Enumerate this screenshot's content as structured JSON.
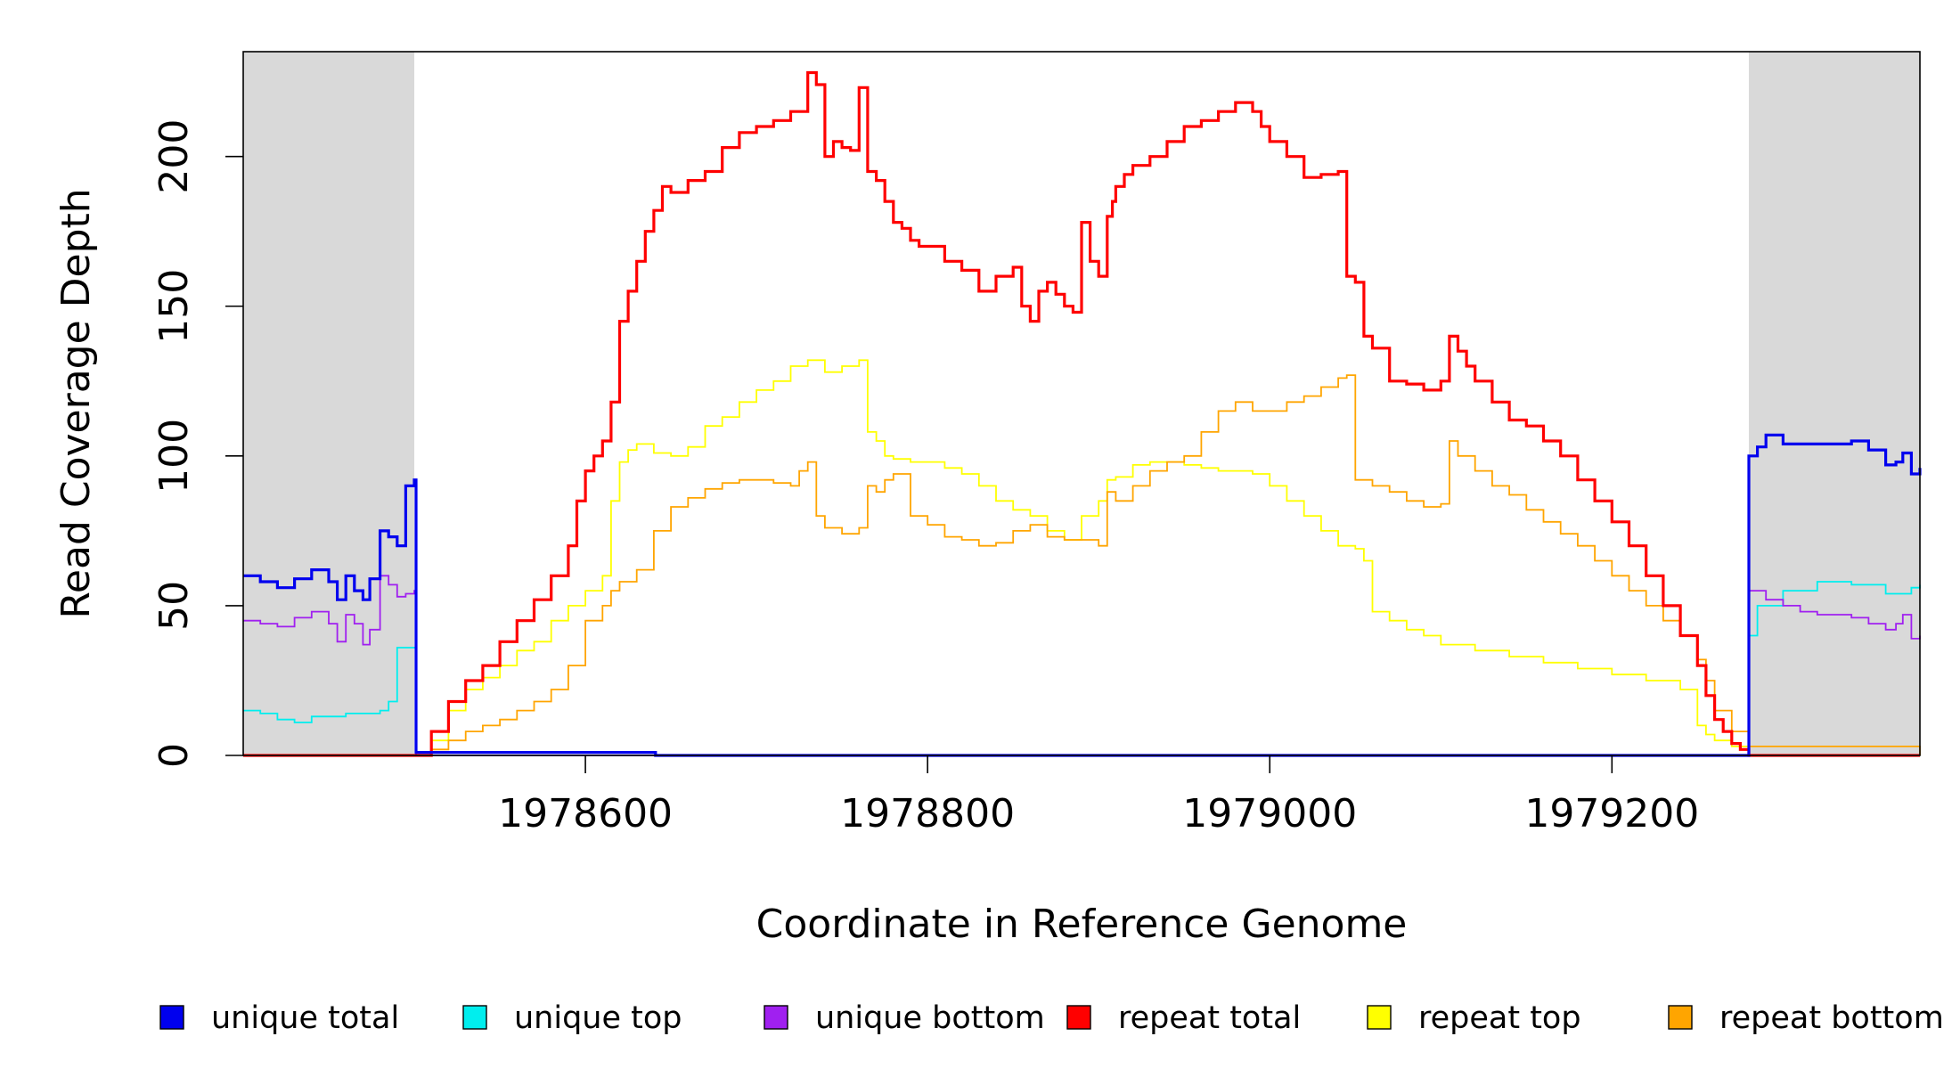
{
  "chart_data": {
    "type": "line",
    "xlabel": "Coordinate in Reference Genome",
    "ylabel": "Read Coverage Depth",
    "xlim": [
      1978400,
      1979380
    ],
    "ylim": [
      0,
      235
    ],
    "x_ticks": [
      1978600,
      1978800,
      1979000,
      1979200
    ],
    "y_ticks": [
      0,
      50,
      100,
      150,
      200
    ],
    "x_tick_labels": [
      "1978600",
      "1978800",
      "1979000",
      "1979200"
    ],
    "y_tick_labels": [
      "0",
      "50",
      "100",
      "150",
      "200"
    ],
    "shaded_regions": [
      [
        1978400,
        1978500
      ],
      [
        1979280,
        1979380
      ]
    ],
    "grid": false,
    "legend_position": "bottom",
    "colors": {
      "unique total": "#0000ee",
      "unique top": "#00eeee",
      "unique bottom": "#a020f0",
      "repeat total": "#ff0000",
      "repeat top": "#ffff00",
      "repeat bottom": "#ffa500",
      "shade": "#d9d9d9"
    },
    "series": [
      {
        "name": "unique total",
        "color": "#0000ee",
        "x": [
          1978400,
          1978410,
          1978420,
          1978430,
          1978440,
          1978450,
          1978455,
          1978460,
          1978465,
          1978470,
          1978474,
          1978480,
          1978485,
          1978490,
          1978495,
          1978500,
          1978501,
          1978640,
          1978641,
          1979279,
          1979280,
          1979285,
          1979290,
          1979300,
          1979320,
          1979340,
          1979350,
          1979360,
          1979366,
          1979370,
          1979375,
          1979380
        ],
        "values": [
          60,
          58,
          56,
          59,
          62,
          58,
          52,
          60,
          55,
          52,
          59,
          75,
          73,
          70,
          90,
          92,
          1,
          1,
          0,
          0,
          100,
          103,
          107,
          104,
          104,
          105,
          102,
          97,
          98,
          101,
          94,
          96
        ]
      },
      {
        "name": "unique top",
        "color": "#00eeee",
        "x": [
          1978400,
          1978410,
          1978420,
          1978430,
          1978440,
          1978450,
          1978460,
          1978470,
          1978480,
          1978485,
          1978490,
          1978500,
          1978501,
          1979279,
          1979280,
          1979285,
          1979300,
          1979320,
          1979340,
          1979360,
          1979375,
          1979380
        ],
        "values": [
          15,
          14,
          12,
          11,
          13,
          13,
          14,
          14,
          15,
          18,
          36,
          36,
          0,
          0,
          40,
          50,
          55,
          58,
          57,
          54,
          56,
          57
        ]
      },
      {
        "name": "unique bottom",
        "color": "#a020f0",
        "x": [
          1978400,
          1978410,
          1978420,
          1978430,
          1978440,
          1978450,
          1978455,
          1978460,
          1978465,
          1978470,
          1978474,
          1978480,
          1978485,
          1978490,
          1978495,
          1978500,
          1978501,
          1979279,
          1979280,
          1979290,
          1979300,
          1979310,
          1979320,
          1979340,
          1979350,
          1979360,
          1979366,
          1979370,
          1979375,
          1979380
        ],
        "values": [
          45,
          44,
          43,
          46,
          48,
          44,
          38,
          47,
          44,
          37,
          42,
          60,
          57,
          53,
          54,
          55,
          0,
          0,
          55,
          52,
          50,
          48,
          47,
          46,
          44,
          42,
          44,
          47,
          39,
          40
        ]
      },
      {
        "name": "repeat total",
        "color": "#ff0000",
        "x": [
          1978400,
          1978500,
          1978510,
          1978520,
          1978530,
          1978540,
          1978550,
          1978560,
          1978570,
          1978580,
          1978590,
          1978595,
          1978600,
          1978605,
          1978610,
          1978615,
          1978620,
          1978625,
          1978630,
          1978635,
          1978640,
          1978645,
          1978650,
          1978660,
          1978670,
          1978680,
          1978690,
          1978700,
          1978710,
          1978720,
          1978730,
          1978735,
          1978740,
          1978745,
          1978750,
          1978755,
          1978760,
          1978765,
          1978770,
          1978775,
          1978780,
          1978785,
          1978790,
          1978795,
          1978800,
          1978810,
          1978820,
          1978830,
          1978840,
          1978850,
          1978855,
          1978860,
          1978865,
          1978870,
          1978875,
          1978880,
          1978885,
          1978890,
          1978895,
          1978900,
          1978905,
          1978908,
          1978910,
          1978915,
          1978920,
          1978930,
          1978940,
          1978950,
          1978960,
          1978970,
          1978980,
          1978990,
          1978995,
          1979000,
          1979010,
          1979020,
          1979030,
          1979040,
          1979045,
          1979050,
          1979055,
          1979060,
          1979070,
          1979080,
          1979090,
          1979100,
          1979105,
          1979110,
          1979115,
          1979120,
          1979130,
          1979140,
          1979150,
          1979160,
          1979170,
          1979180,
          1979190,
          1979200,
          1979210,
          1979220,
          1979230,
          1979240,
          1979250,
          1979255,
          1979260,
          1979265,
          1979270,
          1979275,
          1979280,
          1979380
        ],
        "values": [
          0,
          0,
          8,
          18,
          25,
          30,
          38,
          45,
          52,
          60,
          70,
          85,
          95,
          100,
          105,
          118,
          145,
          155,
          165,
          175,
          182,
          190,
          188,
          192,
          195,
          203,
          208,
          210,
          212,
          215,
          228,
          224,
          200,
          205,
          203,
          202,
          223,
          195,
          192,
          185,
          178,
          176,
          172,
          170,
          170,
          165,
          162,
          155,
          160,
          163,
          150,
          145,
          155,
          158,
          154,
          150,
          148,
          178,
          165,
          160,
          180,
          185,
          190,
          194,
          197,
          200,
          205,
          210,
          212,
          215,
          218,
          215,
          210,
          205,
          200,
          193,
          194,
          195,
          160,
          158,
          140,
          136,
          125,
          124,
          122,
          125,
          140,
          135,
          130,
          125,
          118,
          112,
          110,
          105,
          100,
          92,
          85,
          78,
          70,
          60,
          50,
          40,
          30,
          20,
          12,
          8,
          4,
          2,
          0,
          0
        ]
      },
      {
        "name": "repeat top",
        "color": "#ffff00",
        "x": [
          1978400,
          1978500,
          1978510,
          1978520,
          1978530,
          1978540,
          1978550,
          1978560,
          1978570,
          1978580,
          1978590,
          1978600,
          1978610,
          1978615,
          1978620,
          1978625,
          1978630,
          1978640,
          1978650,
          1978660,
          1978670,
          1978680,
          1978690,
          1978700,
          1978710,
          1978720,
          1978730,
          1978740,
          1978750,
          1978760,
          1978765,
          1978770,
          1978775,
          1978780,
          1978790,
          1978800,
          1978810,
          1978820,
          1978830,
          1978840,
          1978850,
          1978860,
          1978870,
          1978880,
          1978890,
          1978900,
          1978905,
          1978910,
          1978920,
          1978930,
          1978940,
          1978950,
          1978960,
          1978970,
          1978980,
          1978990,
          1979000,
          1979010,
          1979020,
          1979030,
          1979040,
          1979050,
          1979055,
          1979060,
          1979070,
          1979080,
          1979090,
          1979100,
          1979120,
          1979140,
          1979160,
          1979180,
          1979200,
          1979220,
          1979240,
          1979250,
          1979255,
          1979260,
          1979270,
          1979280,
          1979380
        ],
        "values": [
          0,
          0,
          5,
          15,
          22,
          26,
          30,
          35,
          38,
          45,
          50,
          55,
          60,
          85,
          98,
          102,
          104,
          101,
          100,
          103,
          110,
          113,
          118,
          122,
          125,
          130,
          132,
          128,
          130,
          132,
          108,
          105,
          100,
          99,
          98,
          98,
          96,
          94,
          90,
          85,
          82,
          80,
          75,
          72,
          80,
          85,
          92,
          93,
          97,
          98,
          98,
          97,
          96,
          95,
          95,
          94,
          90,
          85,
          80,
          75,
          70,
          69,
          65,
          48,
          45,
          42,
          40,
          37,
          35,
          33,
          31,
          29,
          27,
          25,
          22,
          10,
          7,
          5,
          3,
          0,
          0
        ]
      },
      {
        "name": "repeat bottom",
        "color": "#ffa500",
        "x": [
          1978400,
          1978500,
          1978510,
          1978520,
          1978530,
          1978540,
          1978550,
          1978560,
          1978570,
          1978580,
          1978590,
          1978600,
          1978610,
          1978615,
          1978620,
          1978630,
          1978640,
          1978650,
          1978660,
          1978670,
          1978680,
          1978690,
          1978700,
          1978710,
          1978720,
          1978725,
          1978730,
          1978735,
          1978740,
          1978750,
          1978760,
          1978765,
          1978770,
          1978775,
          1978780,
          1978790,
          1978800,
          1978810,
          1978820,
          1978830,
          1978840,
          1978850,
          1978860,
          1978870,
          1978880,
          1978890,
          1978900,
          1978905,
          1978910,
          1978920,
          1978930,
          1978940,
          1978950,
          1978960,
          1978970,
          1978980,
          1978990,
          1979000,
          1979010,
          1979020,
          1979030,
          1979040,
          1979045,
          1979050,
          1979060,
          1979070,
          1979080,
          1979090,
          1979100,
          1979105,
          1979110,
          1979120,
          1979130,
          1979140,
          1979150,
          1979160,
          1979170,
          1979180,
          1979190,
          1979200,
          1979210,
          1979220,
          1979230,
          1979240,
          1979250,
          1979255,
          1979260,
          1979270,
          1979280,
          1979380
        ],
        "values": [
          0,
          0,
          2,
          5,
          8,
          10,
          12,
          15,
          18,
          22,
          30,
          45,
          50,
          55,
          58,
          62,
          75,
          83,
          86,
          89,
          91,
          92,
          92,
          91,
          90,
          95,
          98,
          80,
          76,
          74,
          76,
          90,
          88,
          92,
          94,
          80,
          77,
          73,
          72,
          70,
          71,
          75,
          77,
          73,
          72,
          72,
          70,
          88,
          85,
          90,
          95,
          98,
          100,
          108,
          115,
          118,
          115,
          115,
          118,
          120,
          123,
          126,
          127,
          92,
          90,
          88,
          85,
          83,
          84,
          105,
          100,
          95,
          90,
          87,
          82,
          78,
          74,
          70,
          65,
          60,
          55,
          50,
          45,
          40,
          32,
          25,
          15,
          8,
          3,
          0
        ]
      }
    ]
  },
  "legend": {
    "items": [
      {
        "label": "unique total",
        "color": "#0000ee"
      },
      {
        "label": "unique top",
        "color": "#00eeee"
      },
      {
        "label": "unique bottom",
        "color": "#a020f0"
      },
      {
        "label": "repeat total",
        "color": "#ff0000"
      },
      {
        "label": "repeat top",
        "color": "#ffff00"
      },
      {
        "label": "repeat bottom",
        "color": "#ffa500"
      }
    ]
  }
}
